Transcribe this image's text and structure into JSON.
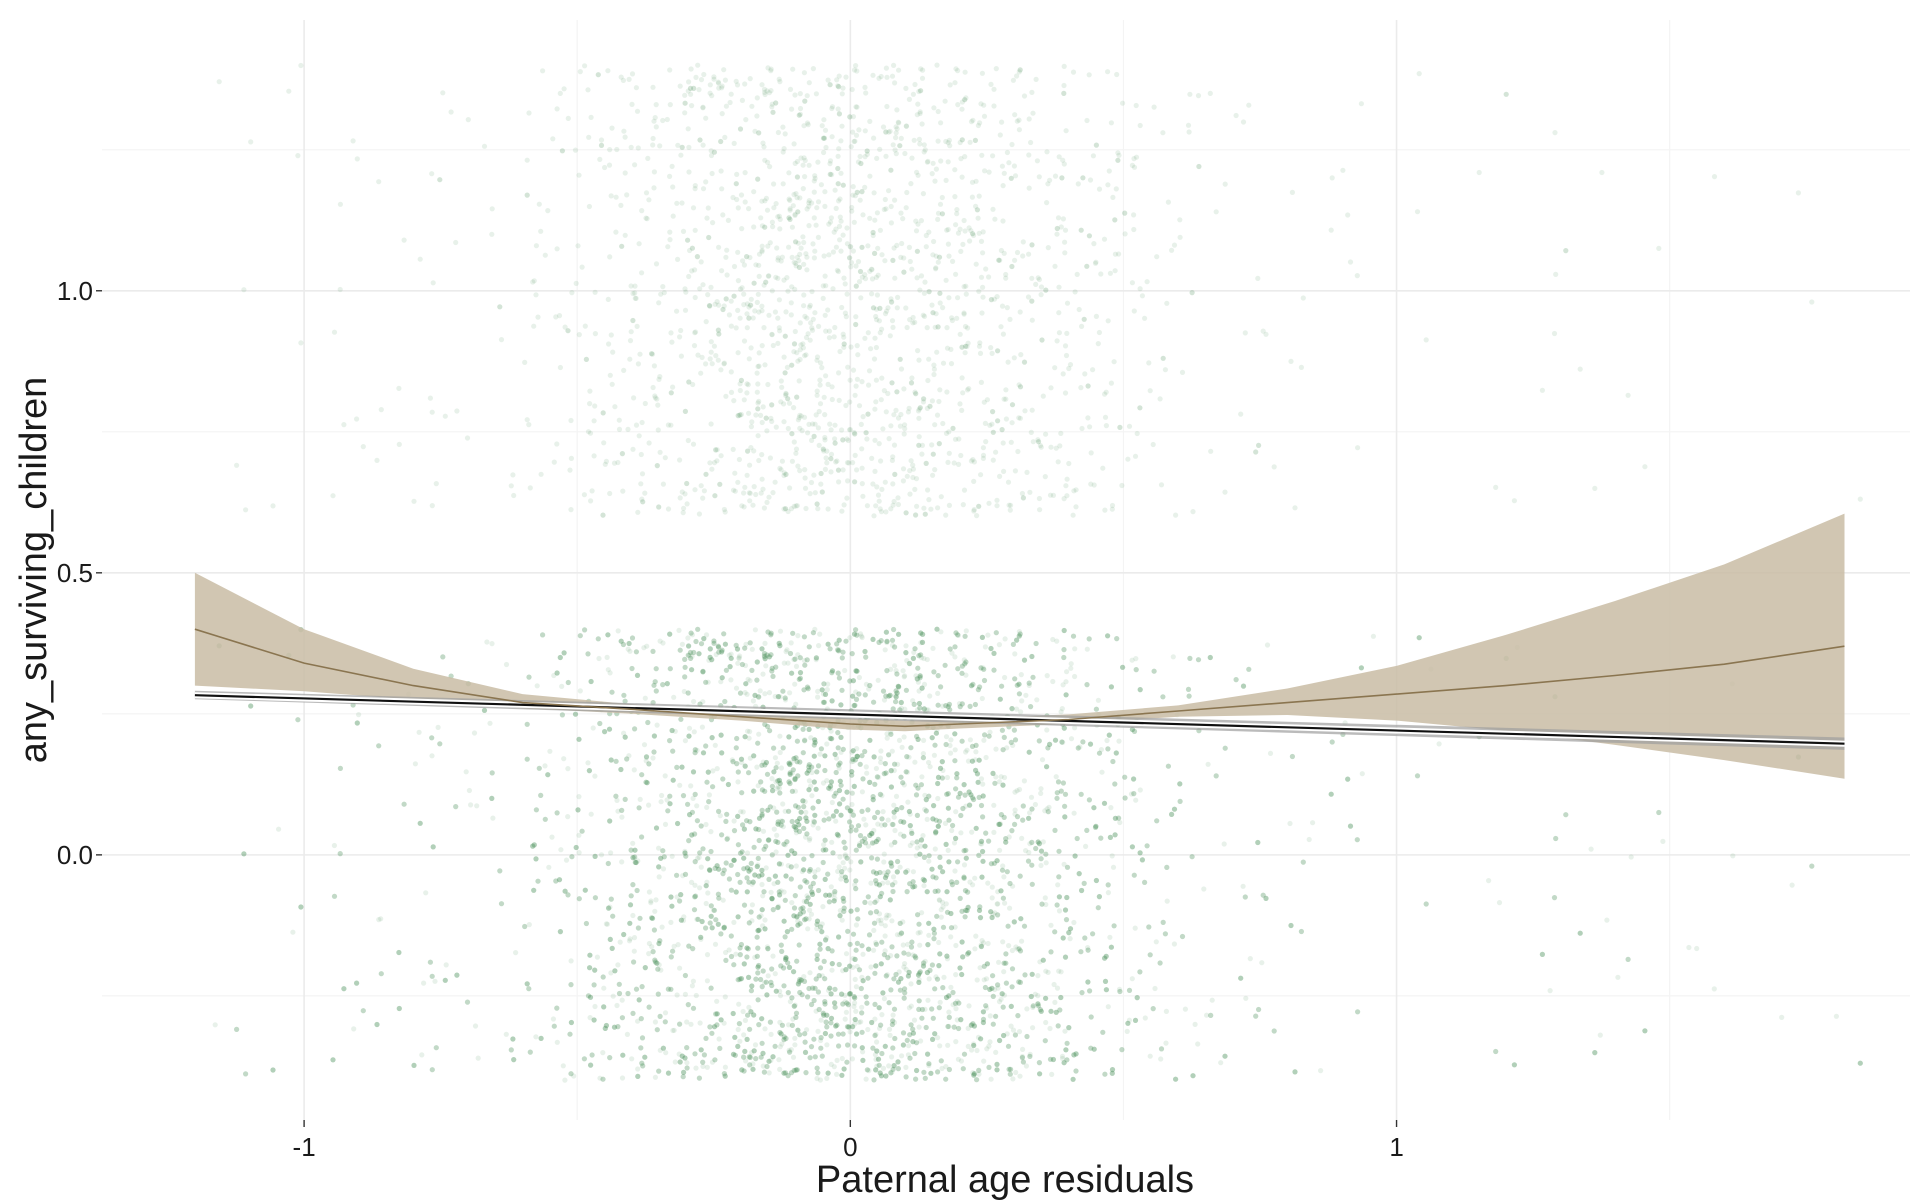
{
  "chart_data": {
    "type": "scatter",
    "title": "",
    "xlabel": "Paternal age residuals",
    "ylabel": "any_surviving_children",
    "xlim": [
      -1.37,
      1.94
    ],
    "ylim": [
      -0.47,
      1.48
    ],
    "x_ticks": [
      -1,
      0,
      1
    ],
    "x_tick_labels": [
      "-1",
      "0",
      "1"
    ],
    "y_ticks": [
      0.0,
      0.5,
      1.0
    ],
    "y_tick_labels": [
      "0.0",
      "0.5",
      "1.0"
    ],
    "grid": true,
    "legend": "none",
    "points": {
      "color": "#4a8f5a",
      "alpha": 0.13,
      "groups": [
        {
          "y_outcome": 0,
          "y_jitter_range": [
            -0.4,
            0.4
          ],
          "x_core_range": [
            -0.6,
            0.6
          ],
          "x_sparse_range": [
            -1.2,
            1.9
          ],
          "density_weight": 0.78
        },
        {
          "y_outcome": 1,
          "y_jitter_range": [
            0.6,
            1.4
          ],
          "x_core_range": [
            -0.6,
            0.6
          ],
          "x_sparse_range": [
            -1.2,
            1.9
          ],
          "density_weight": 0.22
        }
      ]
    },
    "series": [
      {
        "kind": "linear_fit",
        "line_color": "#111111",
        "band_color": "#9e9e9e",
        "x": [
          -1.2,
          1.82
        ],
        "y": [
          0.283,
          0.197
        ],
        "ci_lower": [
          0.276,
          0.186
        ],
        "ci_upper": [
          0.291,
          0.208
        ]
      },
      {
        "kind": "smooth_fit",
        "line_color": "#8a7550",
        "band_color": "#c9bca4",
        "x": [
          -1.2,
          -1.0,
          -0.8,
          -0.6,
          -0.4,
          -0.2,
          0.0,
          0.1,
          0.2,
          0.4,
          0.6,
          0.8,
          1.0,
          1.2,
          1.4,
          1.6,
          1.82
        ],
        "y": [
          0.4,
          0.34,
          0.3,
          0.27,
          0.258,
          0.245,
          0.232,
          0.228,
          0.232,
          0.24,
          0.255,
          0.27,
          0.285,
          0.3,
          0.318,
          0.338,
          0.37
        ],
        "ci_lower": [
          0.3,
          0.29,
          0.275,
          0.26,
          0.25,
          0.238,
          0.222,
          0.219,
          0.224,
          0.232,
          0.245,
          0.248,
          0.238,
          0.22,
          0.195,
          0.168,
          0.135
        ],
        "ci_upper": [
          0.5,
          0.4,
          0.33,
          0.285,
          0.267,
          0.253,
          0.242,
          0.238,
          0.241,
          0.249,
          0.265,
          0.295,
          0.335,
          0.39,
          0.45,
          0.515,
          0.605
        ]
      }
    ]
  }
}
